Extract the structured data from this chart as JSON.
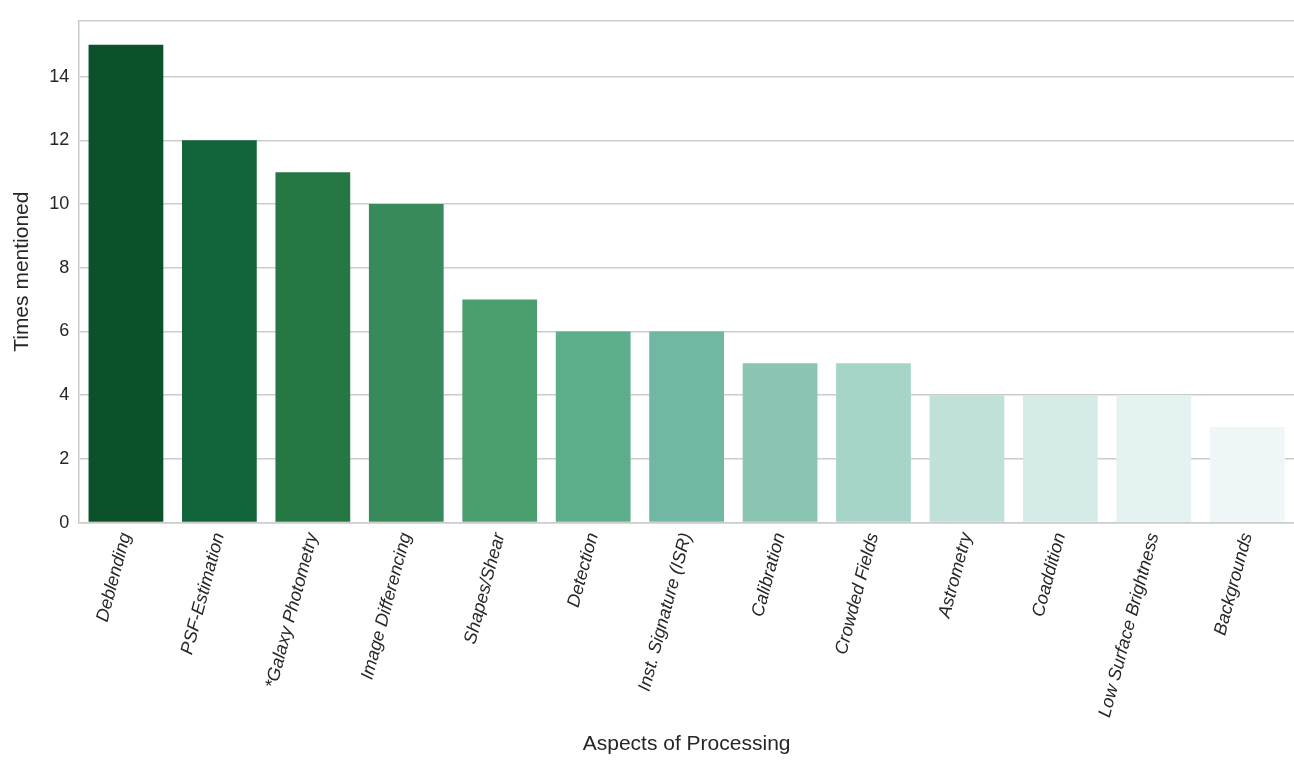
{
  "chart_data": {
    "type": "bar",
    "xlabel": "Aspects of Processing",
    "ylabel": "Times mentioned",
    "categories": [
      "Deblending",
      "PSF-Estimation",
      "*Galaxy Photometry",
      "Image Differencing",
      "Shapes/Shear",
      "Detection",
      "Inst. Signature (ISR)",
      "Calibration",
      "Crowded Fields",
      "Astrometry",
      "Coaddition",
      "Low Surface Brightness",
      "Backgrounds"
    ],
    "values": [
      15,
      12,
      11,
      10,
      7,
      6,
      6,
      5,
      5,
      4,
      4,
      4,
      3
    ],
    "colors": [
      "#0c5129",
      "#12653a",
      "#257843",
      "#398a5b",
      "#4a9e70",
      "#5cae8b",
      "#71b8a4",
      "#8ac5b3",
      "#a5d5c9",
      "#c0e1da",
      "#d4ebe7",
      "#e4f2f2",
      "#eef6f8"
    ],
    "ylim": [
      0,
      15.75
    ],
    "yticks": [
      0,
      2,
      4,
      6,
      8,
      10,
      12,
      14
    ],
    "grid": "y",
    "legend": false
  }
}
